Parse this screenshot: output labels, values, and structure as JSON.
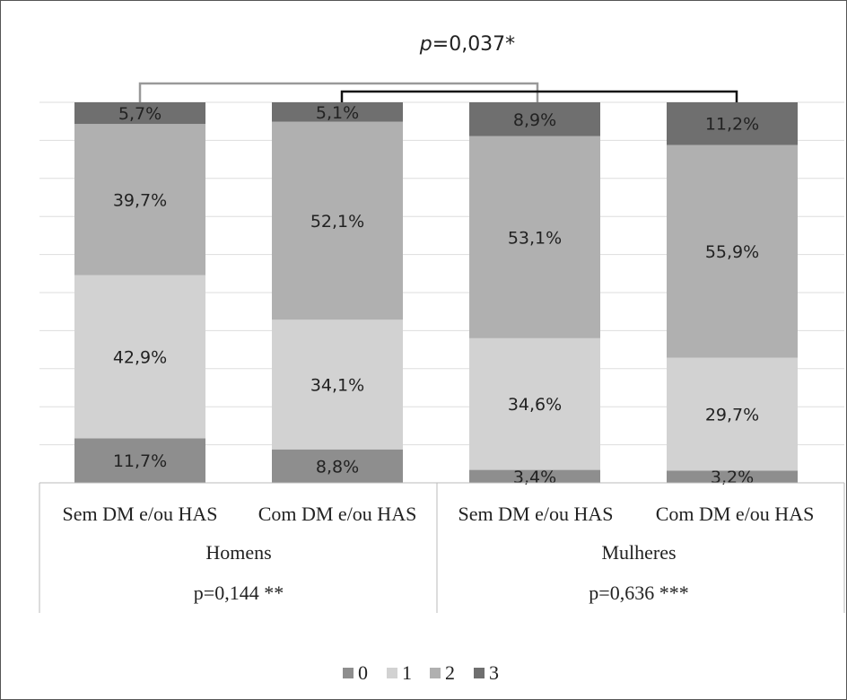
{
  "chart_data": {
    "type": "bar",
    "stacked": true,
    "percent_stacked": true,
    "title": "p=0,037*",
    "title_parts": {
      "italic": "p",
      "rest": "=0,037*"
    },
    "categories": [
      "Sem DM e/ou HAS",
      "Com DM e/ou HAS",
      "Sem DM e/ou HAS",
      "Com DM e/ou HAS"
    ],
    "groups": [
      {
        "label": "Homens",
        "pvalue": "p=0,144 **"
      },
      {
        "label": "Mulheres",
        "pvalue": "p=0,636 ***"
      }
    ],
    "series": [
      {
        "name": "0",
        "values": [
          11.7,
          8.8,
          3.4,
          3.2
        ],
        "labels": [
          "11,7%",
          "8,8%",
          "3,4%",
          "3,2%"
        ]
      },
      {
        "name": "1",
        "values": [
          42.9,
          34.1,
          34.6,
          29.7
        ],
        "labels": [
          "42,9%",
          "34,1%",
          "34,6%",
          "29,7%"
        ]
      },
      {
        "name": "2",
        "values": [
          39.7,
          52.1,
          53.1,
          55.9
        ],
        "labels": [
          "39,7%",
          "52,1%",
          "53,1%",
          "55,9%"
        ]
      },
      {
        "name": "3",
        "values": [
          5.7,
          5.1,
          8.9,
          11.2
        ],
        "labels": [
          "5,7%",
          "5,1%",
          "8,9%",
          "11,2%"
        ]
      }
    ],
    "colors": [
      "#8e8e8e",
      "#d2d2d2",
      "#b0b0b0",
      "#6f6f6f"
    ],
    "bracket_colors": [
      "#999999",
      "#111111"
    ],
    "ylim": [
      0,
      100
    ],
    "grid": true,
    "legend": "bottom-center"
  }
}
